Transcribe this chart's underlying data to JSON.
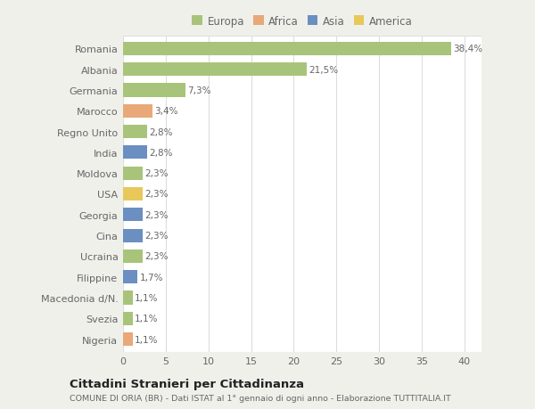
{
  "categories": [
    "Nigeria",
    "Svezia",
    "Macedonia d/N.",
    "Filippine",
    "Ucraina",
    "Cina",
    "Georgia",
    "USA",
    "Moldova",
    "India",
    "Regno Unito",
    "Marocco",
    "Germania",
    "Albania",
    "Romania"
  ],
  "values": [
    1.1,
    1.1,
    1.1,
    1.7,
    2.3,
    2.3,
    2.3,
    2.3,
    2.3,
    2.8,
    2.8,
    3.4,
    7.3,
    21.5,
    38.4
  ],
  "labels": [
    "1,1%",
    "1,1%",
    "1,1%",
    "1,7%",
    "2,3%",
    "2,3%",
    "2,3%",
    "2,3%",
    "2,3%",
    "2,8%",
    "2,8%",
    "3,4%",
    "7,3%",
    "21,5%",
    "38,4%"
  ],
  "colors": [
    "#e8a878",
    "#a8c47a",
    "#a8c47a",
    "#6a8fc0",
    "#a8c47a",
    "#6a8fc0",
    "#6a8fc0",
    "#e8c85a",
    "#a8c47a",
    "#6a8fc0",
    "#a8c47a",
    "#e8a878",
    "#a8c47a",
    "#a8c47a",
    "#a8c47a"
  ],
  "legend_labels": [
    "Europa",
    "Africa",
    "Asia",
    "America"
  ],
  "legend_colors": [
    "#a8c47a",
    "#e8a878",
    "#6a8fc0",
    "#e8c85a"
  ],
  "title": "Cittadini Stranieri per Cittadinanza",
  "subtitle": "COMUNE DI ORIA (BR) - Dati ISTAT al 1° gennaio di ogni anno - Elaborazione TUTTITALIA.IT",
  "xlim": [
    0,
    42
  ],
  "xticks": [
    0,
    5,
    10,
    15,
    20,
    25,
    30,
    35,
    40
  ],
  "bg_color": "#f0f0eb",
  "bar_bg_color": "#ffffff",
  "grid_color": "#dddddd",
  "text_color": "#666666",
  "label_color": "#666666"
}
